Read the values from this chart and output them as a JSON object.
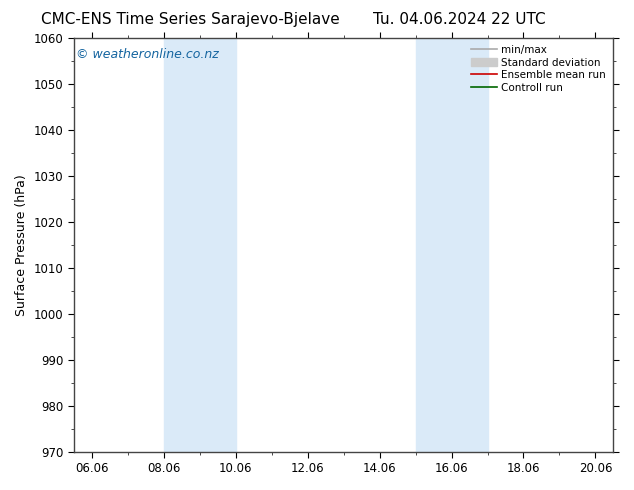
{
  "title_left": "CMC-ENS Time Series Sarajevo-Bjelave",
  "title_right": "Tu. 04.06.2024 22 UTC",
  "ylabel": "Surface Pressure (hPa)",
  "ylim": [
    970,
    1060
  ],
  "yticks": [
    970,
    980,
    990,
    1000,
    1010,
    1020,
    1030,
    1040,
    1050,
    1060
  ],
  "xlim_start": -0.5,
  "xlim_end": 14.5,
  "xtick_labels": [
    "06.06",
    "08.06",
    "10.06",
    "12.06",
    "14.06",
    "16.06",
    "18.06",
    "20.06"
  ],
  "xtick_positions": [
    0,
    2,
    4,
    6,
    8,
    10,
    12,
    14
  ],
  "shaded_bands": [
    {
      "xmin": 2.0,
      "xmax": 4.0
    },
    {
      "xmin": 9.0,
      "xmax": 11.0
    }
  ],
  "shade_color": "#daeaf8",
  "background_color": "#ffffff",
  "watermark": "© weatheronline.co.nz",
  "watermark_color": "#1565a0",
  "watermark_fontsize": 9,
  "legend_labels": [
    "min/max",
    "Standard deviation",
    "Ensemble mean run",
    "Controll run"
  ],
  "legend_line_color_minmax": "#aaaaaa",
  "legend_fill_color_std": "#cccccc",
  "legend_color_ensemble": "#cc0000",
  "legend_color_control": "#006600",
  "title_fontsize": 11,
  "axis_label_fontsize": 9,
  "tick_fontsize": 8.5,
  "spine_color": "#444444",
  "spine_linewidth": 1.0
}
